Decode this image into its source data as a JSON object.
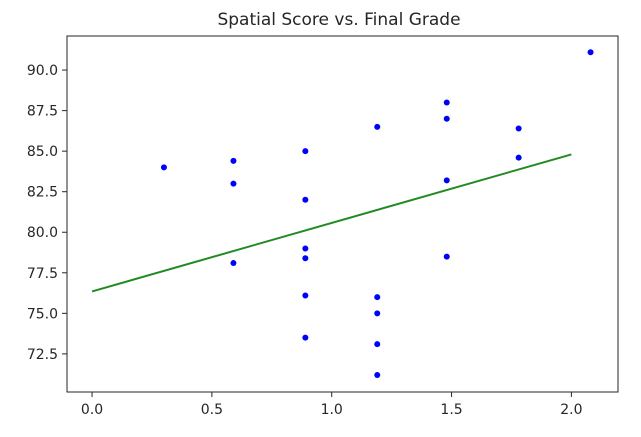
{
  "chart_data": {
    "type": "scatter",
    "title": "Spatial Score vs. Final Grade",
    "xlabel": "",
    "ylabel": "",
    "xlim": [
      -0.1045,
      2.1945
    ],
    "ylim": [
      70.15,
      92.1
    ],
    "x_ticks": [
      0.0,
      0.5,
      1.0,
      1.5,
      2.0
    ],
    "x_tick_labels": [
      "0.0",
      "0.5",
      "1.0",
      "1.5",
      "2.0"
    ],
    "y_ticks": [
      72.5,
      75.0,
      77.5,
      80.0,
      82.5,
      85.0,
      87.5,
      90.0
    ],
    "y_tick_labels": [
      "72.5",
      "75.0",
      "77.5",
      "80.0",
      "82.5",
      "85.0",
      "87.5",
      "90.0"
    ],
    "grid": false,
    "legend": "none",
    "series": [
      {
        "kind": "scatter",
        "color": "#0000ff",
        "points": [
          {
            "x": 0.3,
            "y": 84.0
          },
          {
            "x": 0.59,
            "y": 84.4
          },
          {
            "x": 0.59,
            "y": 83.0
          },
          {
            "x": 0.59,
            "y": 78.1
          },
          {
            "x": 0.89,
            "y": 85.0
          },
          {
            "x": 0.89,
            "y": 82.0
          },
          {
            "x": 0.89,
            "y": 79.0
          },
          {
            "x": 0.89,
            "y": 78.4
          },
          {
            "x": 0.89,
            "y": 76.1
          },
          {
            "x": 0.89,
            "y": 73.5
          },
          {
            "x": 1.19,
            "y": 86.5
          },
          {
            "x": 1.19,
            "y": 76.0
          },
          {
            "x": 1.19,
            "y": 75.0
          },
          {
            "x": 1.19,
            "y": 73.1
          },
          {
            "x": 1.19,
            "y": 71.2
          },
          {
            "x": 1.48,
            "y": 88.0
          },
          {
            "x": 1.48,
            "y": 87.0
          },
          {
            "x": 1.48,
            "y": 83.2
          },
          {
            "x": 1.48,
            "y": 78.5
          },
          {
            "x": 1.78,
            "y": 86.4
          },
          {
            "x": 1.78,
            "y": 84.6
          },
          {
            "x": 2.08,
            "y": 91.1
          }
        ]
      },
      {
        "kind": "line",
        "color": "#228b22",
        "points": [
          {
            "x": 0.0,
            "y": 76.35
          },
          {
            "x": 2.0,
            "y": 84.8
          }
        ]
      }
    ]
  }
}
